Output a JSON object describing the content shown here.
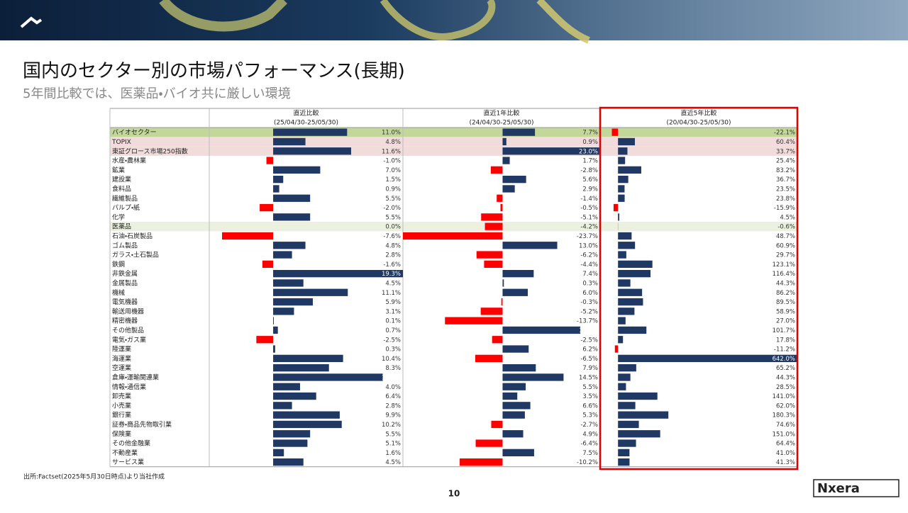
{
  "header": {
    "title": "国内のセクター別の市場パフォーマンス(長期)",
    "subtitle": "5年間比較では、医薬品・バイオ共に厳しい環境"
  },
  "table": {
    "rows": [
      "バイオセクター",
      "TOPIX",
      "東証グロース市場250指数",
      "水産・農林業",
      "鉱業",
      "建設業",
      "食料品",
      "繊維製品",
      "パルプ・紙",
      "化学",
      "医薬品",
      "石油・石炭製品",
      "ゴム製品",
      "ガラス・土石製品",
      "鉄鋼",
      "非鉄金属",
      "金属製品",
      "機械",
      "電気機器",
      "輸送用機器",
      "精密機器",
      "その他製品",
      "電気・ガス業",
      "陸運業",
      "海運業",
      "空運業",
      "倉庫・運輸関連業",
      "情報・通信業",
      "卸売業",
      "小売業",
      "銀行業",
      "証券・商品先物取引業",
      "保険業",
      "その他金融業",
      "不動産業",
      "サービス業"
    ],
    "row_colors": [
      "#c4d79b",
      "#f2dcdb",
      "#f2dcdb",
      null,
      null,
      null,
      null,
      null,
      null,
      null,
      "#ebf1de",
      null,
      null,
      null,
      null,
      null,
      null,
      null,
      null,
      null,
      null,
      null,
      null,
      null,
      null,
      null,
      null,
      null,
      null,
      null,
      null,
      null,
      null,
      null,
      null,
      null
    ],
    "positive_color": "#1f3864",
    "negative_color": "#ff0000",
    "columns": [
      {
        "header": "直近比較",
        "period": "(25/04/30-25/05/30)",
        "xlim": [
          -9.5,
          19.3
        ],
        "values": [
          11.0,
          4.8,
          11.6,
          -1.0,
          7.0,
          1.5,
          0.9,
          5.5,
          -2.0,
          5.5,
          0.0,
          -7.6,
          4.8,
          2.8,
          -1.6,
          19.3,
          4.5,
          11.1,
          5.9,
          3.1,
          0.1,
          0.7,
          -2.5,
          0.3,
          10.4,
          8.3,
          16.3,
          4.0,
          6.4,
          2.8,
          9.9,
          10.2,
          5.5,
          5.1,
          1.6,
          4.5
        ],
        "value_labels": [
          "11.0%",
          "4.8%",
          "11.6%",
          "-1.0%",
          "7.0%",
          "1.5%",
          "0.9%",
          "5.5%",
          "-2.0%",
          "5.5%",
          "0.0%",
          "-7.6%",
          "4.8%",
          "2.8%",
          "-1.6%",
          "19.3%",
          "4.5%",
          "11.1%",
          "5.9%",
          "3.1%",
          "0.1%",
          "0.7%",
          "-2.5%",
          "0.3%",
          "10.4%",
          "8.3%",
          "16.3%",
          "4.0%",
          "6.4%",
          "2.8%",
          "9.9%",
          "10.2%",
          "5.5%",
          "5.1%",
          "1.6%",
          "4.5%"
        ]
      },
      {
        "header": "直近1年比較",
        "period": "(24/04/30-25/05/30)",
        "xlim": [
          -23.7,
          23.2
        ],
        "values": [
          7.7,
          0.9,
          23.0,
          1.7,
          -2.8,
          5.6,
          2.9,
          -1.4,
          -0.5,
          -5.1,
          -4.2,
          -23.7,
          13.0,
          -6.2,
          -4.4,
          7.4,
          0.3,
          6.0,
          -0.3,
          -5.2,
          -13.7,
          18.5,
          -2.5,
          6.2,
          -6.5,
          7.9,
          14.5,
          5.5,
          3.5,
          6.6,
          5.3,
          -2.7,
          4.9,
          -6.4,
          7.5,
          -10.2
        ],
        "value_labels": [
          "7.7%",
          "0.9%",
          "23.0%",
          "1.7%",
          "-2.8%",
          "5.6%",
          "2.9%",
          "-1.4%",
          "-0.5%",
          "-5.1%",
          "-4.2%",
          "-23.7%",
          "13.0%",
          "-6.2%",
          "-4.4%",
          "7.4%",
          "0.3%",
          "6.0%",
          "-0.3%",
          "-5.2%",
          "-13.7%",
          "18.5%",
          "-2.5%",
          "6.2%",
          "-6.5%",
          "7.9%",
          "14.5%",
          "5.5%",
          "3.5%",
          "6.6%",
          "5.3%",
          "-2.7%",
          "4.9%",
          "-6.4%",
          "7.5%",
          "-10.2%"
        ]
      },
      {
        "header": "直近5年比較",
        "period": "(20/04/30-25/05/30)",
        "xlim": [
          -64,
          642
        ],
        "values": [
          -22.1,
          60.4,
          33.7,
          25.4,
          83.2,
          36.7,
          23.5,
          23.8,
          -15.9,
          4.5,
          -0.6,
          48.7,
          60.9,
          29.7,
          123.1,
          116.4,
          44.3,
          86.2,
          89.5,
          58.9,
          27.0,
          101.7,
          17.8,
          -11.2,
          642.0,
          65.2,
          44.3,
          28.5,
          141.0,
          62.0,
          180.3,
          74.6,
          151.0,
          64.4,
          41.0,
          41.3
        ],
        "value_labels": [
          "-22.1%",
          "60.4%",
          "33.7%",
          "25.4%",
          "83.2%",
          "36.7%",
          "23.5%",
          "23.8%",
          "-15.9%",
          "4.5%",
          "-0.6%",
          "48.7%",
          "60.9%",
          "29.7%",
          "123.1%",
          "116.4%",
          "44.3%",
          "86.2%",
          "89.5%",
          "58.9%",
          "27.0%",
          "101.7%",
          "17.8%",
          "-11.2%",
          "642.0%",
          "65.2%",
          "44.3%",
          "28.5%",
          "141.0%",
          "62.0%",
          "180.3%",
          "74.6%",
          "151.0%",
          "64.4%",
          "41.0%",
          "41.3%"
        ]
      }
    ]
  },
  "footer": {
    "source": "出所:Factset(2025年5月30日時点)より当社作成",
    "page": "10",
    "logo": "Nxera"
  }
}
